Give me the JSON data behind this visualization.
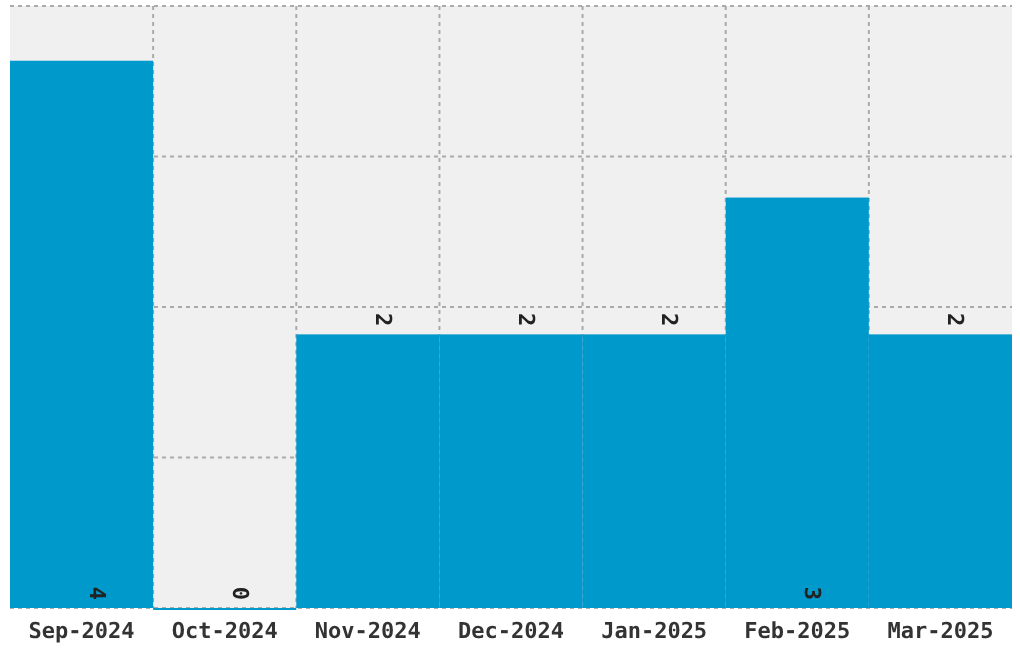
{
  "chart_data": {
    "type": "bar",
    "categories": [
      "Sep-2024",
      "Oct-2024",
      "Nov-2024",
      "Dec-2024",
      "Jan-2025",
      "Feb-2025",
      "Mar-2025"
    ],
    "values": [
      4,
      0,
      2,
      2,
      2,
      3,
      2
    ],
    "color": "#0099cc",
    "ylim": [
      0,
      4.4
    ],
    "yticks": [
      {
        "value": 0,
        "label": null
      },
      {
        "value": 1.1,
        "label": null
      },
      {
        "value": 2.2,
        "label": null
      },
      {
        "value": 3.3,
        "label": null
      },
      {
        "value": 4.4,
        "label": null
      }
    ],
    "grid": true,
    "tick_labels": "x",
    "data_labels": true
  }
}
